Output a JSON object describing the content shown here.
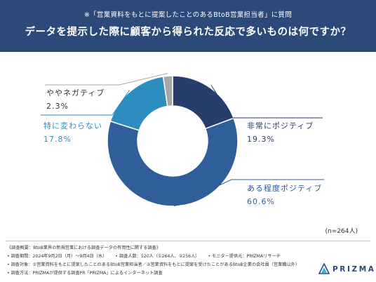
{
  "header": {
    "subtitle": "※「営業資料をもとに提案したことのあるBtoB営業担当者」に質問",
    "title": "データを提示した際に顧客から得られた反応で多いものは何ですか？"
  },
  "colors": {
    "header_bg": "#2b4a7a",
    "slice_very_positive": "#273d6b",
    "slice_somewhat_positive": "#2f5e9a",
    "slice_no_change": "#2e8dbf",
    "slice_somewhat_negative": "#a7a7a7"
  },
  "chart_data": {
    "type": "pie",
    "donut": true,
    "categories": [
      "非常にポジティブ",
      "ある程度ポジティブ",
      "特に変わらない",
      "ややネガティブ"
    ],
    "values": [
      19.3,
      60.6,
      17.8,
      2.3
    ],
    "value_labels": [
      "19.3%",
      "60.6%",
      "17.8%",
      "2.3%"
    ],
    "note": "(n=264人)"
  },
  "footer": {
    "overview": "《調査概要：BtoB業界の新規営業における調査データの有用性に関する調査》",
    "period": "• 調査期間：2024年9月2日（月）〜9月4日（水）",
    "count": "• 調査人数：520人（①264人、②256人）",
    "monitor": "• モニター提供元：PRIZMAリサーチ",
    "target": "• 調査対象：①営業資料をもとに提案したことのあるBtoB営業担当者／②営業資料をもとに提案を受けたことがあるBtoB企業の会社員（営業職以外）",
    "method": "• 調査方法：PRIZMAが提供する調査PR「PRIZMA」によるインターネット調査"
  },
  "logo": {
    "text": "PRIZMA",
    "icon": "prizma-triangle-icon"
  }
}
